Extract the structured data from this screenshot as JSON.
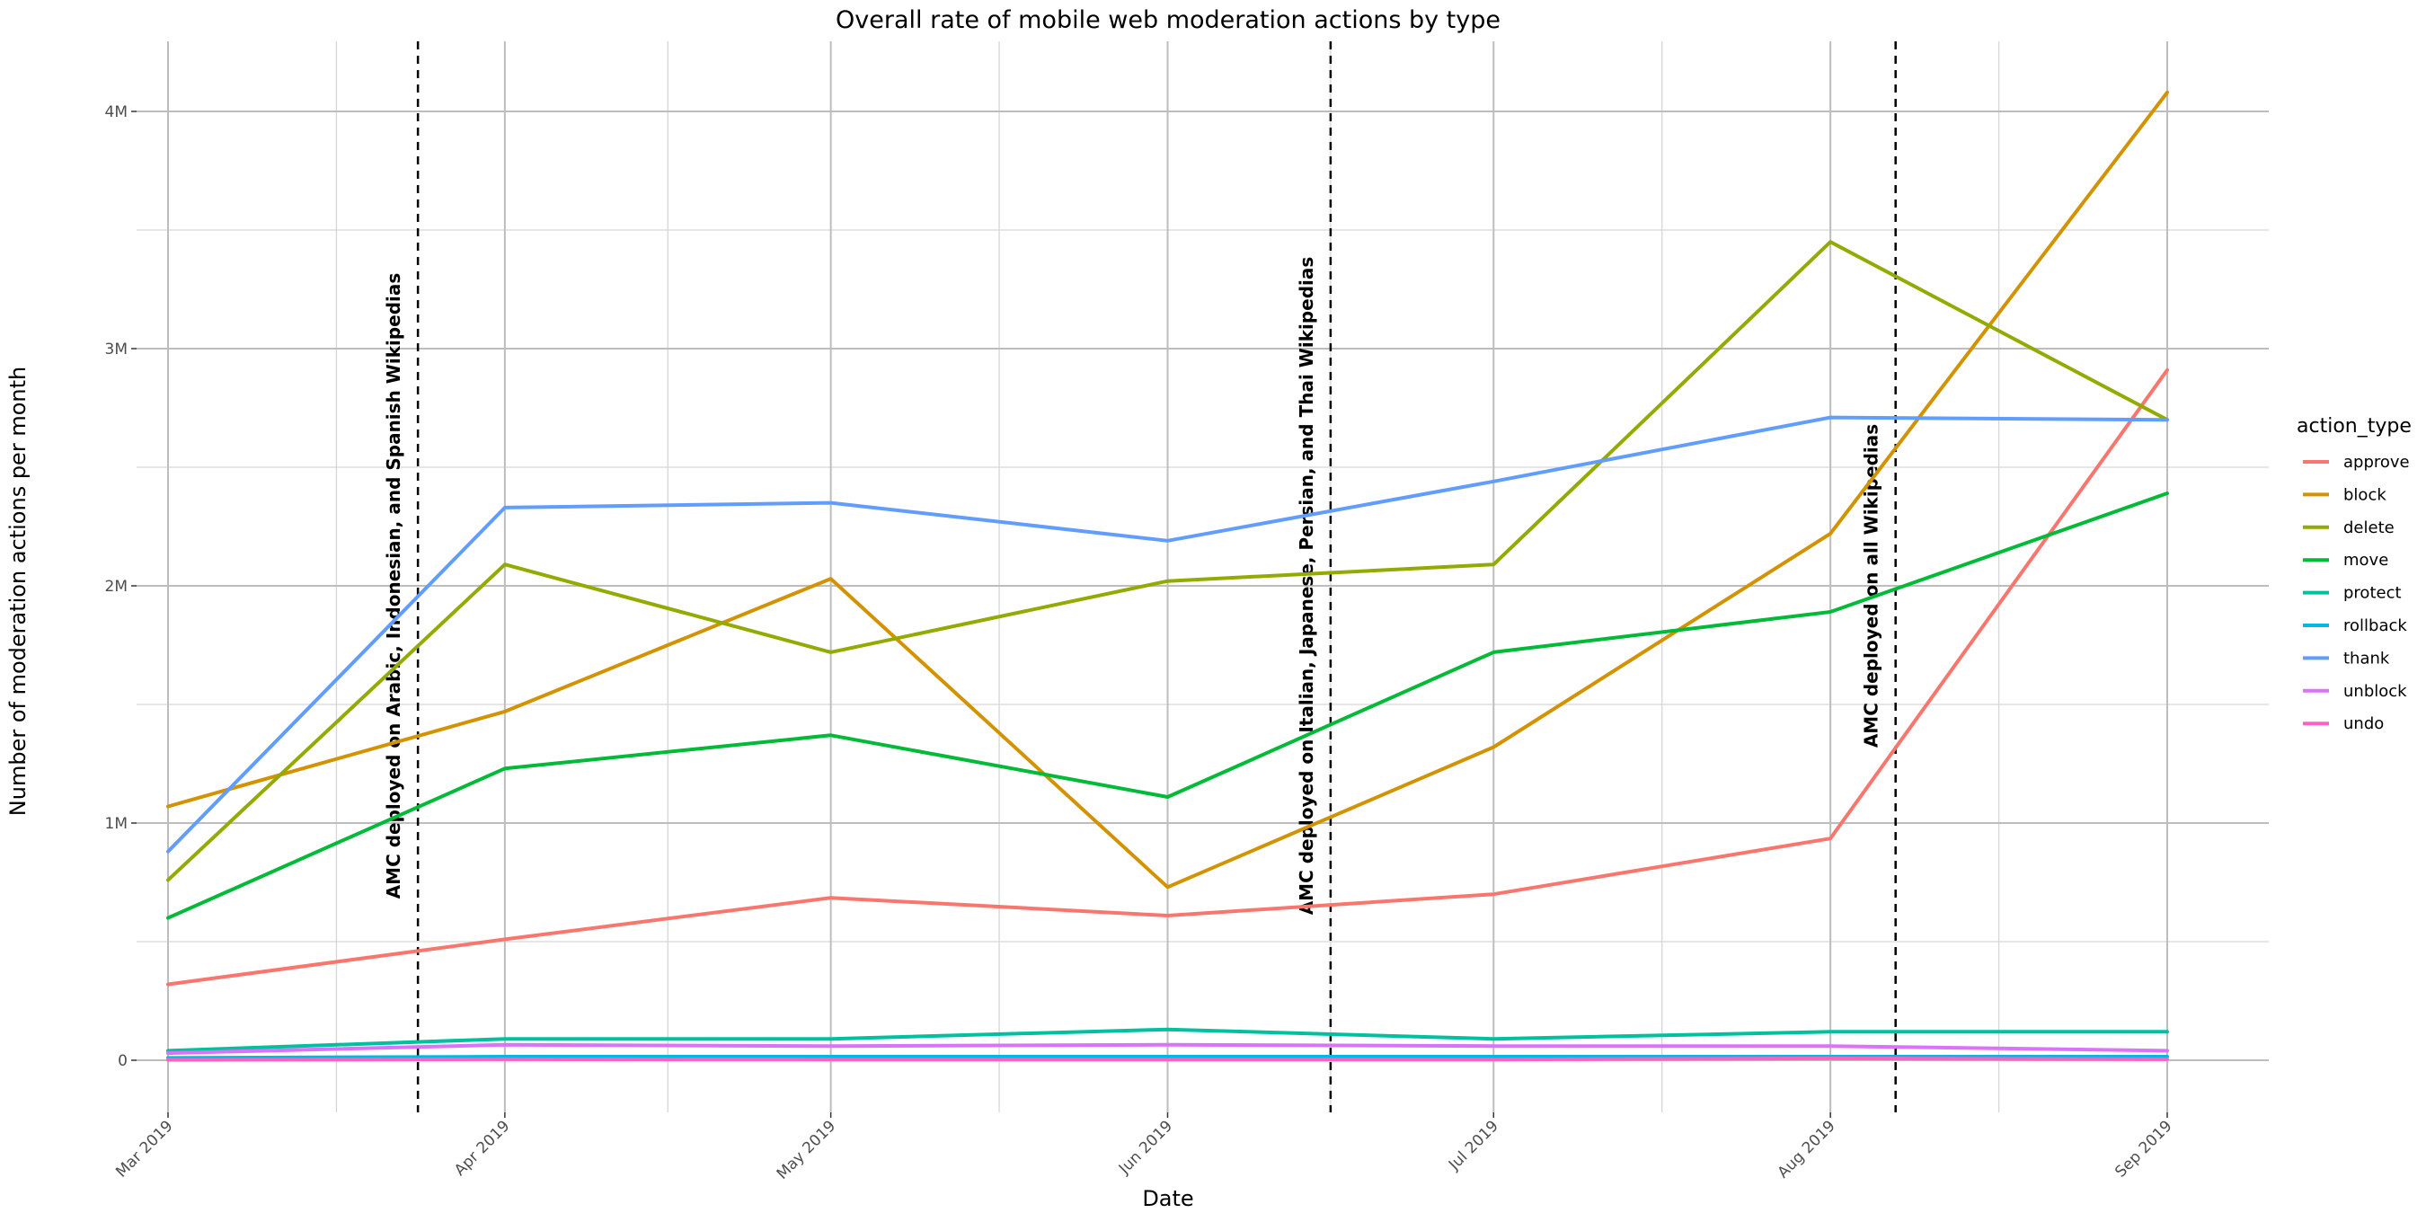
{
  "chart_data": {
    "type": "line",
    "title": "Overall rate of mobile web moderation actions by type",
    "xlabel": "Date",
    "ylabel": "Number of moderation actions per month",
    "x": [
      "2019-03",
      "2019-04",
      "2019-05",
      "2019-06",
      "2019-07",
      "2019-08",
      "2019-09"
    ],
    "x_tick_labels": [
      "Mar 2019",
      "Apr 2019",
      "May 2019",
      "Jun 2019",
      "Jul 2019",
      "Aug 2019",
      "Sep 2019"
    ],
    "ylim": [
      0,
      4200000
    ],
    "y_ticks": [
      0,
      1000000,
      2000000,
      3000000,
      4000000
    ],
    "y_tick_labels": [
      "0",
      "1M",
      "2M",
      "3M",
      "4M"
    ],
    "grid": true,
    "legend": {
      "title": "action_type",
      "position": "right"
    },
    "series": [
      {
        "name": "approve",
        "color": "#F8766D",
        "values": [
          320000,
          510000,
          685000,
          610000,
          700000,
          935000,
          2910000
        ]
      },
      {
        "name": "block",
        "color": "#D39200",
        "values": [
          1070000,
          1470000,
          2030000,
          730000,
          1320000,
          2220000,
          4080000
        ]
      },
      {
        "name": "delete",
        "color": "#93AA00",
        "values": [
          760000,
          2090000,
          1720000,
          2020000,
          2090000,
          3450000,
          2700000
        ]
      },
      {
        "name": "move",
        "color": "#00BA38",
        "values": [
          600000,
          1230000,
          1370000,
          1110000,
          1720000,
          1890000,
          2390000
        ]
      },
      {
        "name": "protect",
        "color": "#00C19F",
        "values": [
          40000,
          90000,
          90000,
          130000,
          90000,
          120000,
          120000
        ]
      },
      {
        "name": "rollback",
        "color": "#00B9E3",
        "values": [
          10000,
          15000,
          15000,
          15000,
          15000,
          15000,
          15000
        ]
      },
      {
        "name": "thank",
        "color": "#619CFF",
        "values": [
          880000,
          2330000,
          2350000,
          2190000,
          2440000,
          2710000,
          2700000
        ]
      },
      {
        "name": "unblock",
        "color": "#DB72FB",
        "values": [
          30000,
          65000,
          60000,
          65000,
          60000,
          60000,
          40000
        ]
      },
      {
        "name": "undo",
        "color": "#FF61C3",
        "values": [
          2000,
          4000,
          3000,
          3000,
          3000,
          8000,
          4000
        ]
      }
    ],
    "annotations": [
      {
        "x": "2019-03-24",
        "text": "AMC deployed on Arabic, Indonesian, and Spanish Wikipedias"
      },
      {
        "x": "2019-06-16",
        "text": "AMC deployed on Italian, Japanese, Persian, and Thai Wikipedias"
      },
      {
        "x": "2019-08-07",
        "text": "AMC deployed on all Wikipedias"
      }
    ]
  }
}
